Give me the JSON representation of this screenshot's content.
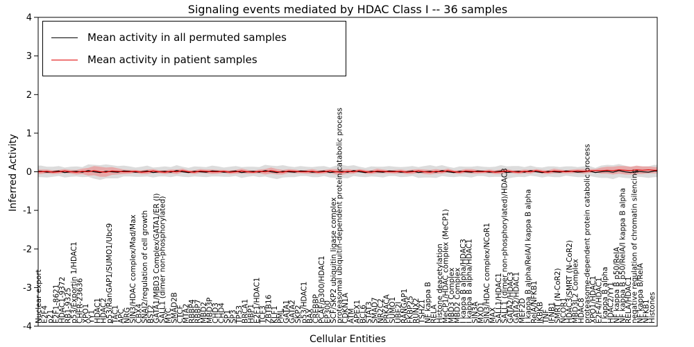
{
  "chart_data": {
    "type": "line",
    "title": "Signaling events mediated by HDAC Class I -- 36 samples",
    "xlabel": "Cellular Entities",
    "ylabel": "Inferred Activity",
    "ylim": [
      -4,
      4
    ],
    "yticks": [
      -4,
      -3,
      -2,
      -1,
      0,
      1,
      2,
      3,
      4
    ],
    "legend_position": "upper left",
    "grid": false,
    "categories": [
      "Nuclear export",
      "E2F4",
      "p21",
      "E2F1-8621",
      "HDAC1-9372",
      "RB1-9325",
      "p53/Exportin 1/HDAC1",
      "CHFR-23636",
      "XPO1",
      "YY1",
      "HDAC1",
      "HDAC2",
      "p53/RanGAP1/SUMO1/Ubc9",
      "TAC1",
      "APC",
      "NRG",
      "SIN3/HDAC complex/Mad/Max",
      "CBX4",
      "SNAI2/regulation of cell growth",
      "BST2",
      "GATA1/MBD3 Complex/GATA1/ER (I)",
      "SALL1 (dimer non-phosphorylated)",
      "MYC",
      "SMAD2B",
      "CTCF",
      "MTA2",
      "RBBP4",
      "RBBP7",
      "MBD2",
      "MBD3P",
      "CHD3",
      "CHD4",
      "SP1",
      "SP3",
      "TP53",
      "BRCA1",
      "HBP1",
      "E2F1/HDAC1",
      "TCF3",
      "ZBTB16",
      "KLF1",
      "PML",
      "GATA1",
      "GATA2",
      "SKP2",
      "p53/HDAC1",
      "BAX",
      "CREBBP",
      "PCAF/p300/HDAC1",
      "EP300",
      "SCF/SKP2 ubiquitin ligase complex",
      "proteasomal ubiquitin-dependent protein catabolic process",
      "CDKN1A",
      "ATM",
      "APEX1",
      "BCL6",
      "STAT3",
      "SMAD7",
      "NR2C2",
      "PRKACA",
      "SUMO1",
      "UBE2I",
      "RANGAP1",
      "FKBP25",
      "RUNX2",
      "TSHZ1",
      "NF kappa B",
      "RELA",
      "Histone deacetylation",
      "MeCP1/HDAC complex (MeCP1)",
      "MBD3 Complex",
      "MBD2 Complex",
      "I kappa B alpha/HDAC3",
      "I kappa B alpha/HDAC1",
      "SIN3A",
      "MXD1",
      "SIN3/HDAC complex/NCoR1",
      "MAX",
      "SALL1/HDAC1",
      "SALL1 (dimer non-phosphorylated)/HDAC3",
      "GATA2/HDAC3",
      "GATA2/HDAC1",
      "MEF2D",
      "I kappa B alpha/RelA/I kappa B alpha",
      "RelA/NFKB1",
      "IKBKB",
      "TNF",
      "IFNB1",
      "SMRT (N-CoR2)",
      "NCOR1",
      "HDAC3/SMRT (N-CoR2)",
      "MBD3L2 Complex",
      "HDAC8",
      "proteasome-dependent protein catabolic process",
      "XPO1/HDAC1",
      "E2F4/HDAC1",
      "I kappa B alpha",
      "HDAC2/YY1",
      "NF kappa B p50/RelA",
      "NF kappa B p50/RelA/I kappa B alpha",
      "RELA/HDAC1",
      "negative regulation of chromatin silencing",
      "NF kappa B/RelA",
      "NFKB1",
      "Histones"
    ],
    "series": [
      {
        "name": "Mean activity in all permuted samples",
        "color": "#000000",
        "band_color": "#c0c0c0",
        "band_opacity": 0.55,
        "values": [
          0.01,
          -0.01,
          0,
          0.02,
          -0.02,
          0,
          0.01,
          -0.01,
          0.03,
          0,
          -0.02,
          0.01,
          0,
          -0.01,
          0.02,
          0.01,
          -0.01,
          0,
          0.02,
          -0.02,
          0,
          0.01,
          -0.01,
          0.03,
          0,
          -0.02,
          0.01,
          0,
          -0.01,
          0.02,
          0.01,
          -0.01,
          0,
          0.02,
          -0.02,
          0,
          0.01,
          -0.01,
          0.03,
          0,
          -0.02,
          0.01,
          0,
          -0.01,
          0.02,
          0.01,
          -0.01,
          0,
          0.02,
          -0.02,
          0,
          0.01,
          -0.01,
          0.03,
          0,
          -0.02,
          0.01,
          0,
          -0.01,
          0.02,
          0.01,
          -0.01,
          0,
          0.02,
          -0.02,
          0,
          0.01,
          -0.01,
          0.03,
          0,
          -0.02,
          0.01,
          0,
          -0.01,
          0.02,
          0.01,
          -0.01,
          0,
          0.02,
          -0.02,
          0,
          0.01,
          -0.01,
          0.03,
          0,
          -0.02,
          0.01,
          0,
          -0.01,
          0.02,
          0.01,
          -0.01,
          0,
          0.02,
          -0.02,
          0,
          0.01,
          -0.01,
          0.03,
          0,
          -0.02,
          0.01,
          0,
          -0.01,
          0.02
        ],
        "band": [
          0.15,
          0.14,
          0.13,
          0.13,
          0.13,
          0.13,
          0.13,
          0.13,
          0.16,
          0.18,
          0.19,
          0.18,
          0.17,
          0.16,
          0.14,
          0.13,
          0.12,
          0.13,
          0.14,
          0.13,
          0.12,
          0.13,
          0.13,
          0.14,
          0.13,
          0.12,
          0.13,
          0.13,
          0.13,
          0.14,
          0.13,
          0.12,
          0.13,
          0.13,
          0.14,
          0.13,
          0.12,
          0.13,
          0.15,
          0.16,
          0.17,
          0.16,
          0.14,
          0.13,
          0.13,
          0.12,
          0.13,
          0.14,
          0.13,
          0.13,
          0.16,
          0.17,
          0.16,
          0.14,
          0.13,
          0.12,
          0.13,
          0.13,
          0.14,
          0.13,
          0.12,
          0.13,
          0.13,
          0.13,
          0.14,
          0.15,
          0.16,
          0.15,
          0.14,
          0.13,
          0.12,
          0.13,
          0.13,
          0.14,
          0.13,
          0.12,
          0.13,
          0.13,
          0.15,
          0.16,
          0.15,
          0.14,
          0.13,
          0.13,
          0.12,
          0.13,
          0.13,
          0.14,
          0.13,
          0.12,
          0.13,
          0.13,
          0.14,
          0.13,
          0.12,
          0.16,
          0.17,
          0.18,
          0.17,
          0.16,
          0.15,
          0.14,
          0.14,
          0.15,
          0.16
        ]
      },
      {
        "name": "Mean activity in patient samples",
        "color": "#e00000",
        "band_color": "#f08080",
        "band_opacity": 0.55,
        "values": [
          0,
          0.01,
          -0.01,
          0,
          0.02,
          0,
          -0.01,
          0.01,
          0,
          0.03,
          0,
          -0.01,
          0.02,
          0.01,
          0,
          0,
          0.01,
          -0.01,
          0,
          0.02,
          0,
          -0.01,
          0.01,
          0,
          0.03,
          0,
          -0.01,
          0.02,
          0.01,
          0,
          0,
          0.01,
          -0.01,
          0,
          0.02,
          0,
          -0.01,
          0.01,
          0,
          0.03,
          0,
          -0.01,
          0.02,
          0.01,
          0,
          0,
          0.01,
          -0.01,
          0,
          0.02,
          0,
          -0.01,
          0.01,
          0,
          0.03,
          0,
          -0.01,
          0.02,
          0.01,
          0,
          0,
          0.01,
          -0.01,
          0,
          0.02,
          0,
          -0.01,
          0.01,
          0,
          0.03,
          0,
          -0.01,
          0.02,
          0.01,
          0,
          0,
          0.01,
          -0.01,
          0,
          0.02,
          0,
          -0.01,
          0.01,
          0,
          0.03,
          0,
          -0.01,
          0.02,
          0.01,
          0,
          0.01,
          0.02,
          0.01,
          0.02,
          0.03,
          0.03,
          0.04,
          0.03,
          0.05,
          0.04,
          0.03,
          0.05,
          0.04,
          0.05,
          0.04
        ],
        "band": [
          0.06,
          0.05,
          0.05,
          0.05,
          0.05,
          0.05,
          0.06,
          0.07,
          0.1,
          0.12,
          0.13,
          0.12,
          0.1,
          0.08,
          0.06,
          0.05,
          0.04,
          0.05,
          0.06,
          0.05,
          0.04,
          0.05,
          0.05,
          0.06,
          0.05,
          0.04,
          0.05,
          0.05,
          0.05,
          0.06,
          0.05,
          0.04,
          0.05,
          0.05,
          0.06,
          0.05,
          0.04,
          0.05,
          0.07,
          0.08,
          0.07,
          0.06,
          0.05,
          0.05,
          0.04,
          0.05,
          0.06,
          0.05,
          0.05,
          0.05,
          0.07,
          0.07,
          0.06,
          0.05,
          0.04,
          0.05,
          0.05,
          0.06,
          0.05,
          0.04,
          0.05,
          0.05,
          0.05,
          0.06,
          0.05,
          0.06,
          0.06,
          0.06,
          0.05,
          0.05,
          0.04,
          0.05,
          0.05,
          0.06,
          0.05,
          0.04,
          0.05,
          0.05,
          0.06,
          0.05,
          0.04,
          0.05,
          0.05,
          0.05,
          0.04,
          0.05,
          0.05,
          0.06,
          0.05,
          0.04,
          0.05,
          0.05,
          0.06,
          0.05,
          0.04,
          0.08,
          0.09,
          0.1,
          0.1,
          0.11,
          0.1,
          0.11,
          0.1,
          0.09,
          0.08
        ]
      }
    ]
  }
}
